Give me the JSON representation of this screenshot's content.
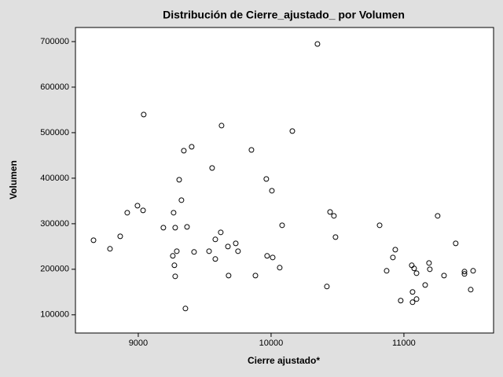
{
  "chart_data": {
    "type": "scatter",
    "title": "Distribución de Cierre_ajustado_ por Volumen",
    "x_label": "Cierre ajustado*",
    "y_label": "Volumen",
    "series": [
      {
        "x": [
          8663,
          8787,
          8864,
          8917,
          8994,
          9036,
          9041,
          9189,
          9266,
          9278,
          9260,
          9272,
          9278,
          9290,
          9308,
          9325,
          9343,
          9355,
          9367,
          9402,
          9420,
          9533,
          9556,
          9580,
          9580,
          9621,
          9627,
          9675,
          9680,
          9734,
          9751,
          9852,
          9882,
          9964,
          9970,
          10012,
          10006,
          10065,
          10083,
          10160,
          10349,
          10420,
          10444,
          10473,
          10485,
          10817,
          10870,
          10917,
          10935,
          10976,
          11059,
          11077,
          11095,
          11065,
          11065,
          11095,
          11160,
          11189,
          11195,
          11254,
          11302,
          11390,
          11456,
          11456,
          11503,
          11521
        ],
        "values": [
          263800,
          244900,
          272400,
          324200,
          339700,
          329300,
          539700,
          291400,
          324200,
          291400,
          229400,
          208700,
          184500,
          239700,
          396600,
          351800,
          460400,
          113800,
          293100,
          469000,
          238000,
          239700,
          422400,
          265600,
          222500,
          281100,
          515500,
          250000,
          186200,
          256900,
          239700,
          462100,
          186200,
          398300,
          229400,
          225900,
          372500,
          203500,
          296600,
          503500,
          694800,
          162100,
          325900,
          317300,
          270700,
          296600,
          196600,
          225900,
          243100,
          131100,
          208700,
          201800,
          191400,
          150100,
          127600,
          134500,
          165500,
          213800,
          200000,
          317300,
          186200,
          256900,
          194900,
          189700,
          155200,
          196600
        ],
        "color": "#000000"
      }
    ],
    "xlim": [
      8527,
      11675
    ],
    "ylim": [
      60000,
      731000
    ],
    "xticks": [
      9000,
      10000,
      11000
    ],
    "yticks": [
      100000,
      200000,
      300000,
      400000,
      500000,
      600000,
      700000
    ]
  }
}
